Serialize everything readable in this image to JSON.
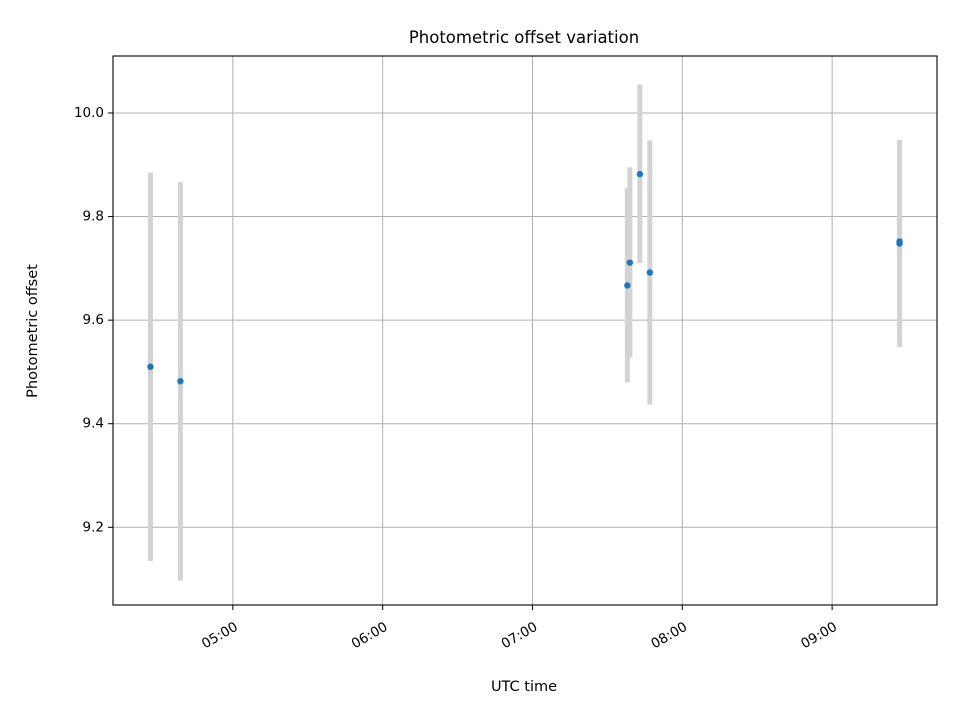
{
  "chart_data": {
    "type": "scatter",
    "title": "Photometric offset variation",
    "xlabel": "UTC time",
    "ylabel": "Photometric offset",
    "x_tick_labels": [
      "05:00",
      "06:00",
      "07:00",
      "08:00",
      "09:00"
    ],
    "x_ticks": [
      "05:00",
      "06:00",
      "07:00",
      "08:00",
      "09:00"
    ],
    "y_tick_labels": [
      "9.2",
      "9.4",
      "9.6",
      "9.8",
      "10.0"
    ],
    "y_ticks": [
      9.2,
      9.4,
      9.6,
      9.8,
      10.0
    ],
    "xlim": [
      "04:12",
      "09:42"
    ],
    "ylim": [
      9.05,
      10.11
    ],
    "grid": true,
    "legend": false,
    "series": [
      {
        "points": [
          {
            "x": "04:27",
            "y": 9.51,
            "err_low": 9.135,
            "err_high": 9.885
          },
          {
            "x": "04:39",
            "y": 9.482,
            "err_low": 9.097,
            "err_high": 9.867
          },
          {
            "x": "07:38",
            "y": 9.667,
            "err_low": 9.48,
            "err_high": 9.855
          },
          {
            "x": "07:39",
            "y": 9.711,
            "err_low": 9.528,
            "err_high": 9.895
          },
          {
            "x": "07:43",
            "y": 9.882,
            "err_low": 9.71,
            "err_high": 10.055
          },
          {
            "x": "07:47",
            "y": 9.692,
            "err_low": 9.437,
            "err_high": 9.947
          },
          {
            "x": "09:27",
            "y": 9.748,
            "err_low": 9.548,
            "err_high": 9.948
          },
          {
            "x": "09:27",
            "y": 9.752,
            "err_low": 9.565,
            "err_high": 9.94
          }
        ]
      }
    ],
    "colors": {
      "points": "#1f77b4",
      "error_bars": "#d3d3d3",
      "grid": "#b0b0b0",
      "axes": "#000000"
    }
  }
}
